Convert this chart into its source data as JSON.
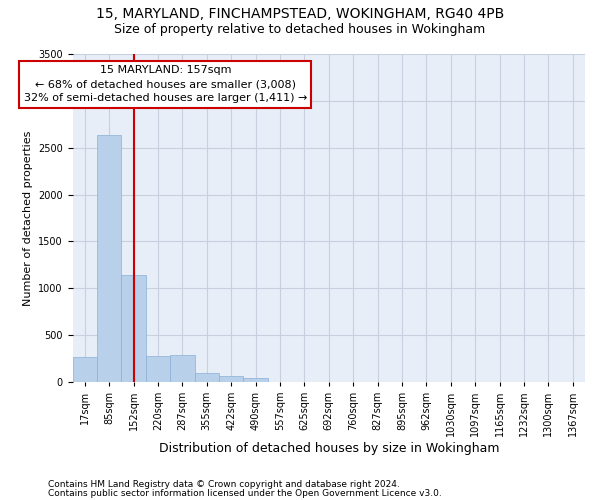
{
  "title1": "15, MARYLAND, FINCHAMPSTEAD, WOKINGHAM, RG40 4PB",
  "title2": "Size of property relative to detached houses in Wokingham",
  "xlabel": "Distribution of detached houses by size in Wokingham",
  "ylabel": "Number of detached properties",
  "footnote1": "Contains HM Land Registry data © Crown copyright and database right 2024.",
  "footnote2": "Contains public sector information licensed under the Open Government Licence v3.0.",
  "annotation_title": "15 MARYLAND: 157sqm",
  "annotation_line1": "← 68% of detached houses are smaller (3,008)",
  "annotation_line2": "32% of semi-detached houses are larger (1,411) →",
  "bar_values": [
    270,
    2640,
    1140,
    280,
    285,
    95,
    65,
    40,
    0,
    0,
    0,
    0,
    0,
    0,
    0,
    0,
    0,
    0,
    0,
    0,
    0
  ],
  "categories": [
    "17sqm",
    "85sqm",
    "152sqm",
    "220sqm",
    "287sqm",
    "355sqm",
    "422sqm",
    "490sqm",
    "557sqm",
    "625sqm",
    "692sqm",
    "760sqm",
    "827sqm",
    "895sqm",
    "962sqm",
    "1030sqm",
    "1097sqm",
    "1165sqm",
    "1232sqm",
    "1300sqm",
    "1367sqm"
  ],
  "bar_color": "#b8d0ea",
  "bar_edge_color": "#8ab0d8",
  "property_line_x": 2.0,
  "property_line_color": "#cc0000",
  "ylim_max": 3500,
  "yticks": [
    0,
    500,
    1000,
    1500,
    2000,
    2500,
    3000,
    3500
  ],
  "grid_color": "#c8d0e0",
  "bg_color": "#e8eef8",
  "title_fontsize": 10,
  "subtitle_fontsize": 9,
  "ylabel_fontsize": 8,
  "xlabel_fontsize": 9,
  "tick_fontsize": 7,
  "annotation_fontsize": 8,
  "footnote_fontsize": 6.5
}
